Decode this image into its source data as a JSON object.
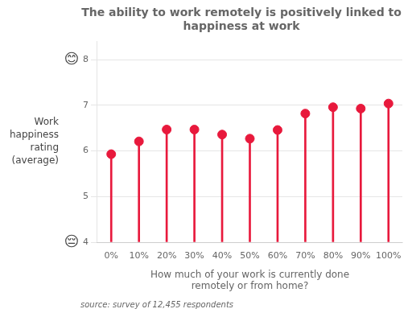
{
  "chart_data": {
    "type": "lollipop",
    "title": "The ability to work remotely is positively linked to\nhappiness at work",
    "xlabel": "How much of your work is currently done\nremotely or from home?",
    "ylabel": "Work\nhappiness\nrating\n(average)",
    "source": "source: survey of 12,455 respondents",
    "annotations": [
      {
        "text": "😊",
        "y": 8
      },
      {
        "text": "😔",
        "y": 4
      }
    ],
    "categories": [
      "0%",
      "10%",
      "20%",
      "30%",
      "40%",
      "50%",
      "60%",
      "70%",
      "80%",
      "90%",
      "100%"
    ],
    "values": [
      5.93,
      6.21,
      6.47,
      6.47,
      6.36,
      6.27,
      6.46,
      6.82,
      6.96,
      6.93,
      7.04
    ],
    "color": "#e8193c",
    "ylim": [
      4,
      8.4
    ],
    "yticks": [
      4,
      5,
      6,
      7,
      8
    ],
    "grid": true
  }
}
